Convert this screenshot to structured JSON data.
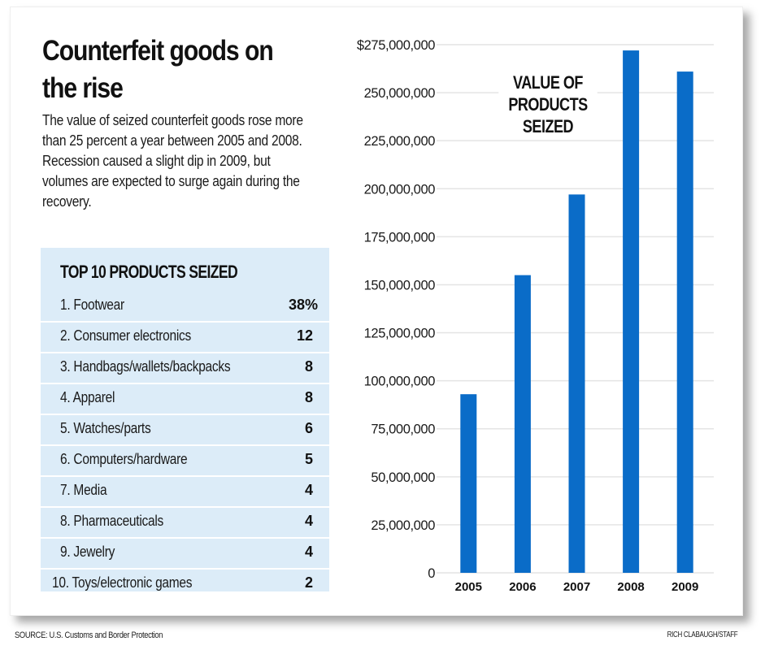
{
  "headline": "Counterfeit goods on the rise",
  "intro": "The value of seized counterfeit goods rose more than 25 percent a year between 2005 and 2008. Recession caused a slight dip in 2009, but volumes are expected to surge again during the recovery.",
  "top_products": {
    "title": "TOP 10 PRODUCTS SEIZED",
    "items": [
      {
        "label": "1. Footwear",
        "value": "38%"
      },
      {
        "label": "2. Consumer electronics",
        "value": "12"
      },
      {
        "label": "3. Handbags/wallets/backpacks",
        "value": "8"
      },
      {
        "label": "4. Apparel",
        "value": "8"
      },
      {
        "label": "5. Watches/parts",
        "value": "6"
      },
      {
        "label": "6. Computers/hardware",
        "value": "5"
      },
      {
        "label": "7. Media",
        "value": "4"
      },
      {
        "label": "8. Pharmaceuticals",
        "value": "4"
      },
      {
        "label": "9. Jewelry",
        "value": "4"
      },
      {
        "label": "10. Toys/electronic games",
        "value": "2"
      }
    ]
  },
  "footer": {
    "source": "SOURCE: U.S. Customs and Border Protection",
    "credit": "RICH CLABAUGH/STAFF"
  },
  "colors": {
    "bar": "#0a6cc8",
    "table_bg": "#dcecf8",
    "gridline": "#e4e4e4"
  },
  "chart_data": {
    "type": "bar",
    "title": "VALUE OF\nPRODUCTS\nSEIZED",
    "xlabel": "",
    "ylabel": "",
    "categories": [
      "2005",
      "2006",
      "2007",
      "2008",
      "2009"
    ],
    "values": [
      93000000,
      155000000,
      197000000,
      272000000,
      261000000
    ],
    "ylim": [
      0,
      275000000
    ],
    "yticks": [
      0,
      25000000,
      50000000,
      75000000,
      100000000,
      125000000,
      150000000,
      175000000,
      200000000,
      225000000,
      250000000,
      275000000
    ],
    "ytick_labels": [
      "0",
      "25,000,000",
      "50,000,000",
      "75,000,000",
      "100,000,000",
      "125,000,000",
      "150,000,000",
      "175,000,000",
      "200,000,000",
      "225,000,000",
      "250,000,000",
      "$275,000,000"
    ],
    "grid": true,
    "legend": "none"
  }
}
